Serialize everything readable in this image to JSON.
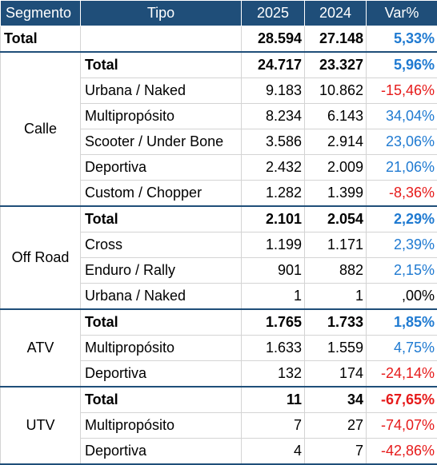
{
  "header": {
    "segmento": "Segmento",
    "tipo": "Tipo",
    "y2025": "2025",
    "y2024": "2024",
    "var": "Var%"
  },
  "grand_total": {
    "label": "Total",
    "y2025": "28.594",
    "y2024": "27.148",
    "var": "5,33%"
  },
  "segments": [
    {
      "name": "Calle",
      "rows": [
        {
          "tipo": "Total",
          "y2025": "24.717",
          "y2024": "23.327",
          "var": "5,96%",
          "subtotal": true
        },
        {
          "tipo": "Urbana / Naked",
          "y2025": "9.183",
          "y2024": "10.862",
          "var": "-15,46%"
        },
        {
          "tipo": "Multipropósito",
          "y2025": "8.234",
          "y2024": "6.143",
          "var": "34,04%"
        },
        {
          "tipo": "Scooter / Under Bone",
          "y2025": "3.586",
          "y2024": "2.914",
          "var": "23,06%"
        },
        {
          "tipo": "Deportiva",
          "y2025": "2.432",
          "y2024": "2.009",
          "var": "21,06%"
        },
        {
          "tipo": "Custom / Chopper",
          "y2025": "1.282",
          "y2024": "1.399",
          "var": "-8,36%"
        }
      ]
    },
    {
      "name": "Off Road",
      "rows": [
        {
          "tipo": "Total",
          "y2025": "2.101",
          "y2024": "2.054",
          "var": "2,29%",
          "subtotal": true
        },
        {
          "tipo": "Cross",
          "y2025": "1.199",
          "y2024": "1.171",
          "var": "2,39%"
        },
        {
          "tipo": "Enduro / Rally",
          "y2025": "901",
          "y2024": "882",
          "var": "2,15%"
        },
        {
          "tipo": "Urbana / Naked",
          "y2025": "1",
          "y2024": "1",
          "var": ",00%"
        }
      ]
    },
    {
      "name": "ATV",
      "rows": [
        {
          "tipo": "Total",
          "y2025": "1.765",
          "y2024": "1.733",
          "var": "1,85%",
          "subtotal": true
        },
        {
          "tipo": "Multipropósito",
          "y2025": "1.633",
          "y2024": "1.559",
          "var": "4,75%"
        },
        {
          "tipo": "Deportiva",
          "y2025": "132",
          "y2024": "174",
          "var": "-24,14%"
        }
      ]
    },
    {
      "name": "UTV",
      "rows": [
        {
          "tipo": "Total",
          "y2025": "11",
          "y2024": "34",
          "var": "-67,65%",
          "subtotal": true
        },
        {
          "tipo": "Multipropósito",
          "y2025": "7",
          "y2024": "27",
          "var": "-74,07%"
        },
        {
          "tipo": "Deportiva",
          "y2025": "4",
          "y2024": "7",
          "var": "-42,86%"
        }
      ]
    }
  ],
  "colors": {
    "header_bg": "#1f4e79",
    "positive": "#1f7ad1",
    "negative": "#e61a1a"
  }
}
